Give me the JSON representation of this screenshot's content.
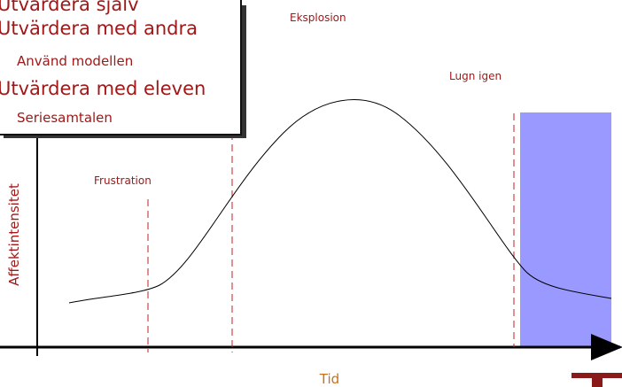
{
  "box": {
    "lines": [
      "Utvärdera själv",
      "Utvärdera med andra",
      "Använd modellen",
      "Utvärdera med eleven",
      "Seriesamtalen"
    ]
  },
  "phases": {
    "frustration": "Frustration",
    "explosion": "Eksplosion",
    "calm": "Lugn igen"
  },
  "axes": {
    "y_label": "Affektintensitet",
    "x_label": "Tid"
  }
}
